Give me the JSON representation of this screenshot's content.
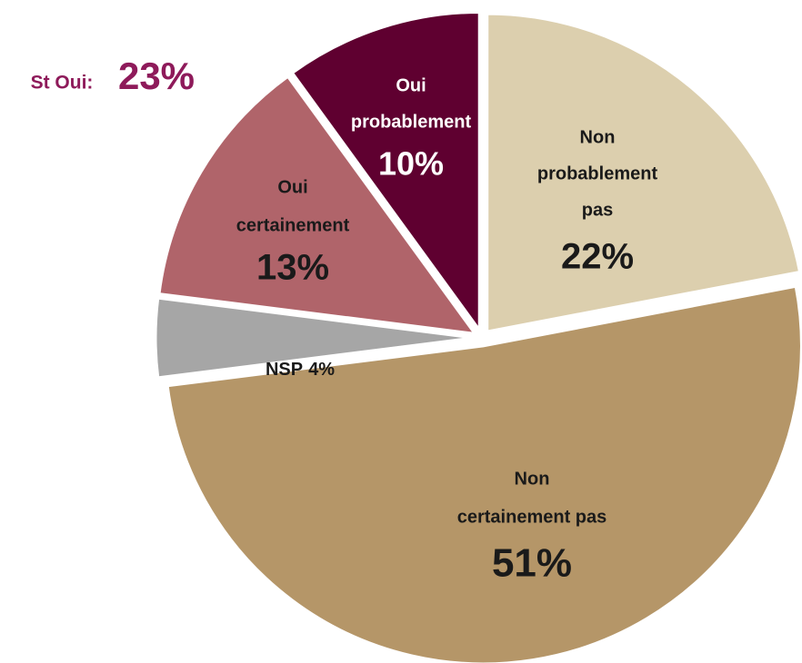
{
  "chart_data": {
    "type": "pie",
    "categories": [
      [
        "Oui",
        "probablement"
      ],
      [
        "Non",
        "probablement",
        "pas"
      ],
      [
        "Non",
        "certainement pas"
      ],
      [
        "NSP"
      ],
      [
        "Oui",
        "certainement"
      ]
    ],
    "values": [
      10,
      22,
      51,
      4,
      13
    ],
    "value_labels": [
      "10%",
      "22%",
      "51%",
      "4%",
      "13%"
    ],
    "colors": [
      "#5f0030",
      "#dccfae",
      "#b59668",
      "#a6a6a6",
      "#b0646a"
    ],
    "annotation": {
      "text": "St Oui:",
      "value": 23,
      "value_label": "23%",
      "color": "#8e1a5a"
    }
  }
}
